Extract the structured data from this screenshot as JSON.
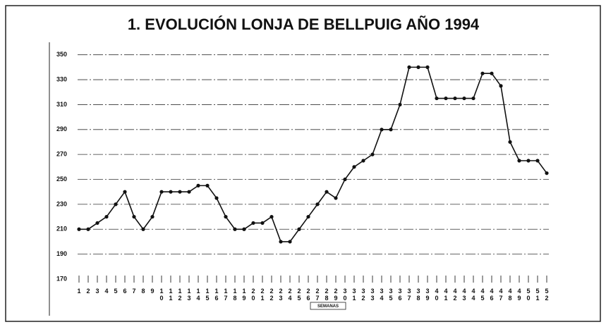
{
  "chart_data": {
    "type": "line",
    "title": "1. EVOLUCIÓN LONJA DE BELLPUIG AÑO 1994",
    "x_label": "SEMANAS",
    "categories": [
      "1",
      "2",
      "3",
      "4",
      "5",
      "6",
      "7",
      "8",
      "9",
      "10",
      "11",
      "12",
      "13",
      "14",
      "15",
      "16",
      "17",
      "18",
      "19",
      "20",
      "21",
      "22",
      "23",
      "24",
      "25",
      "26",
      "27",
      "28",
      "29",
      "30",
      "31",
      "32",
      "33",
      "34",
      "35",
      "36",
      "37",
      "38",
      "39",
      "40",
      "41",
      "42",
      "43",
      "44",
      "45",
      "46",
      "47",
      "48",
      "49",
      "50",
      "51",
      "52"
    ],
    "values": [
      210,
      210,
      215,
      220,
      230,
      240,
      220,
      210,
      220,
      240,
      240,
      240,
      240,
      245,
      245,
      235,
      220,
      210,
      210,
      215,
      215,
      220,
      200,
      200,
      210,
      220,
      230,
      240,
      235,
      250,
      260,
      265,
      270,
      290,
      290,
      310,
      340,
      340,
      340,
      315,
      315,
      315,
      315,
      315,
      335,
      335,
      325,
      280,
      265,
      265,
      265,
      255
    ],
    "color": "#111111",
    "ylim": [
      170,
      360
    ],
    "yticks": [
      170,
      190,
      210,
      230,
      250,
      270,
      290,
      310,
      330,
      350
    ],
    "grid": true
  }
}
